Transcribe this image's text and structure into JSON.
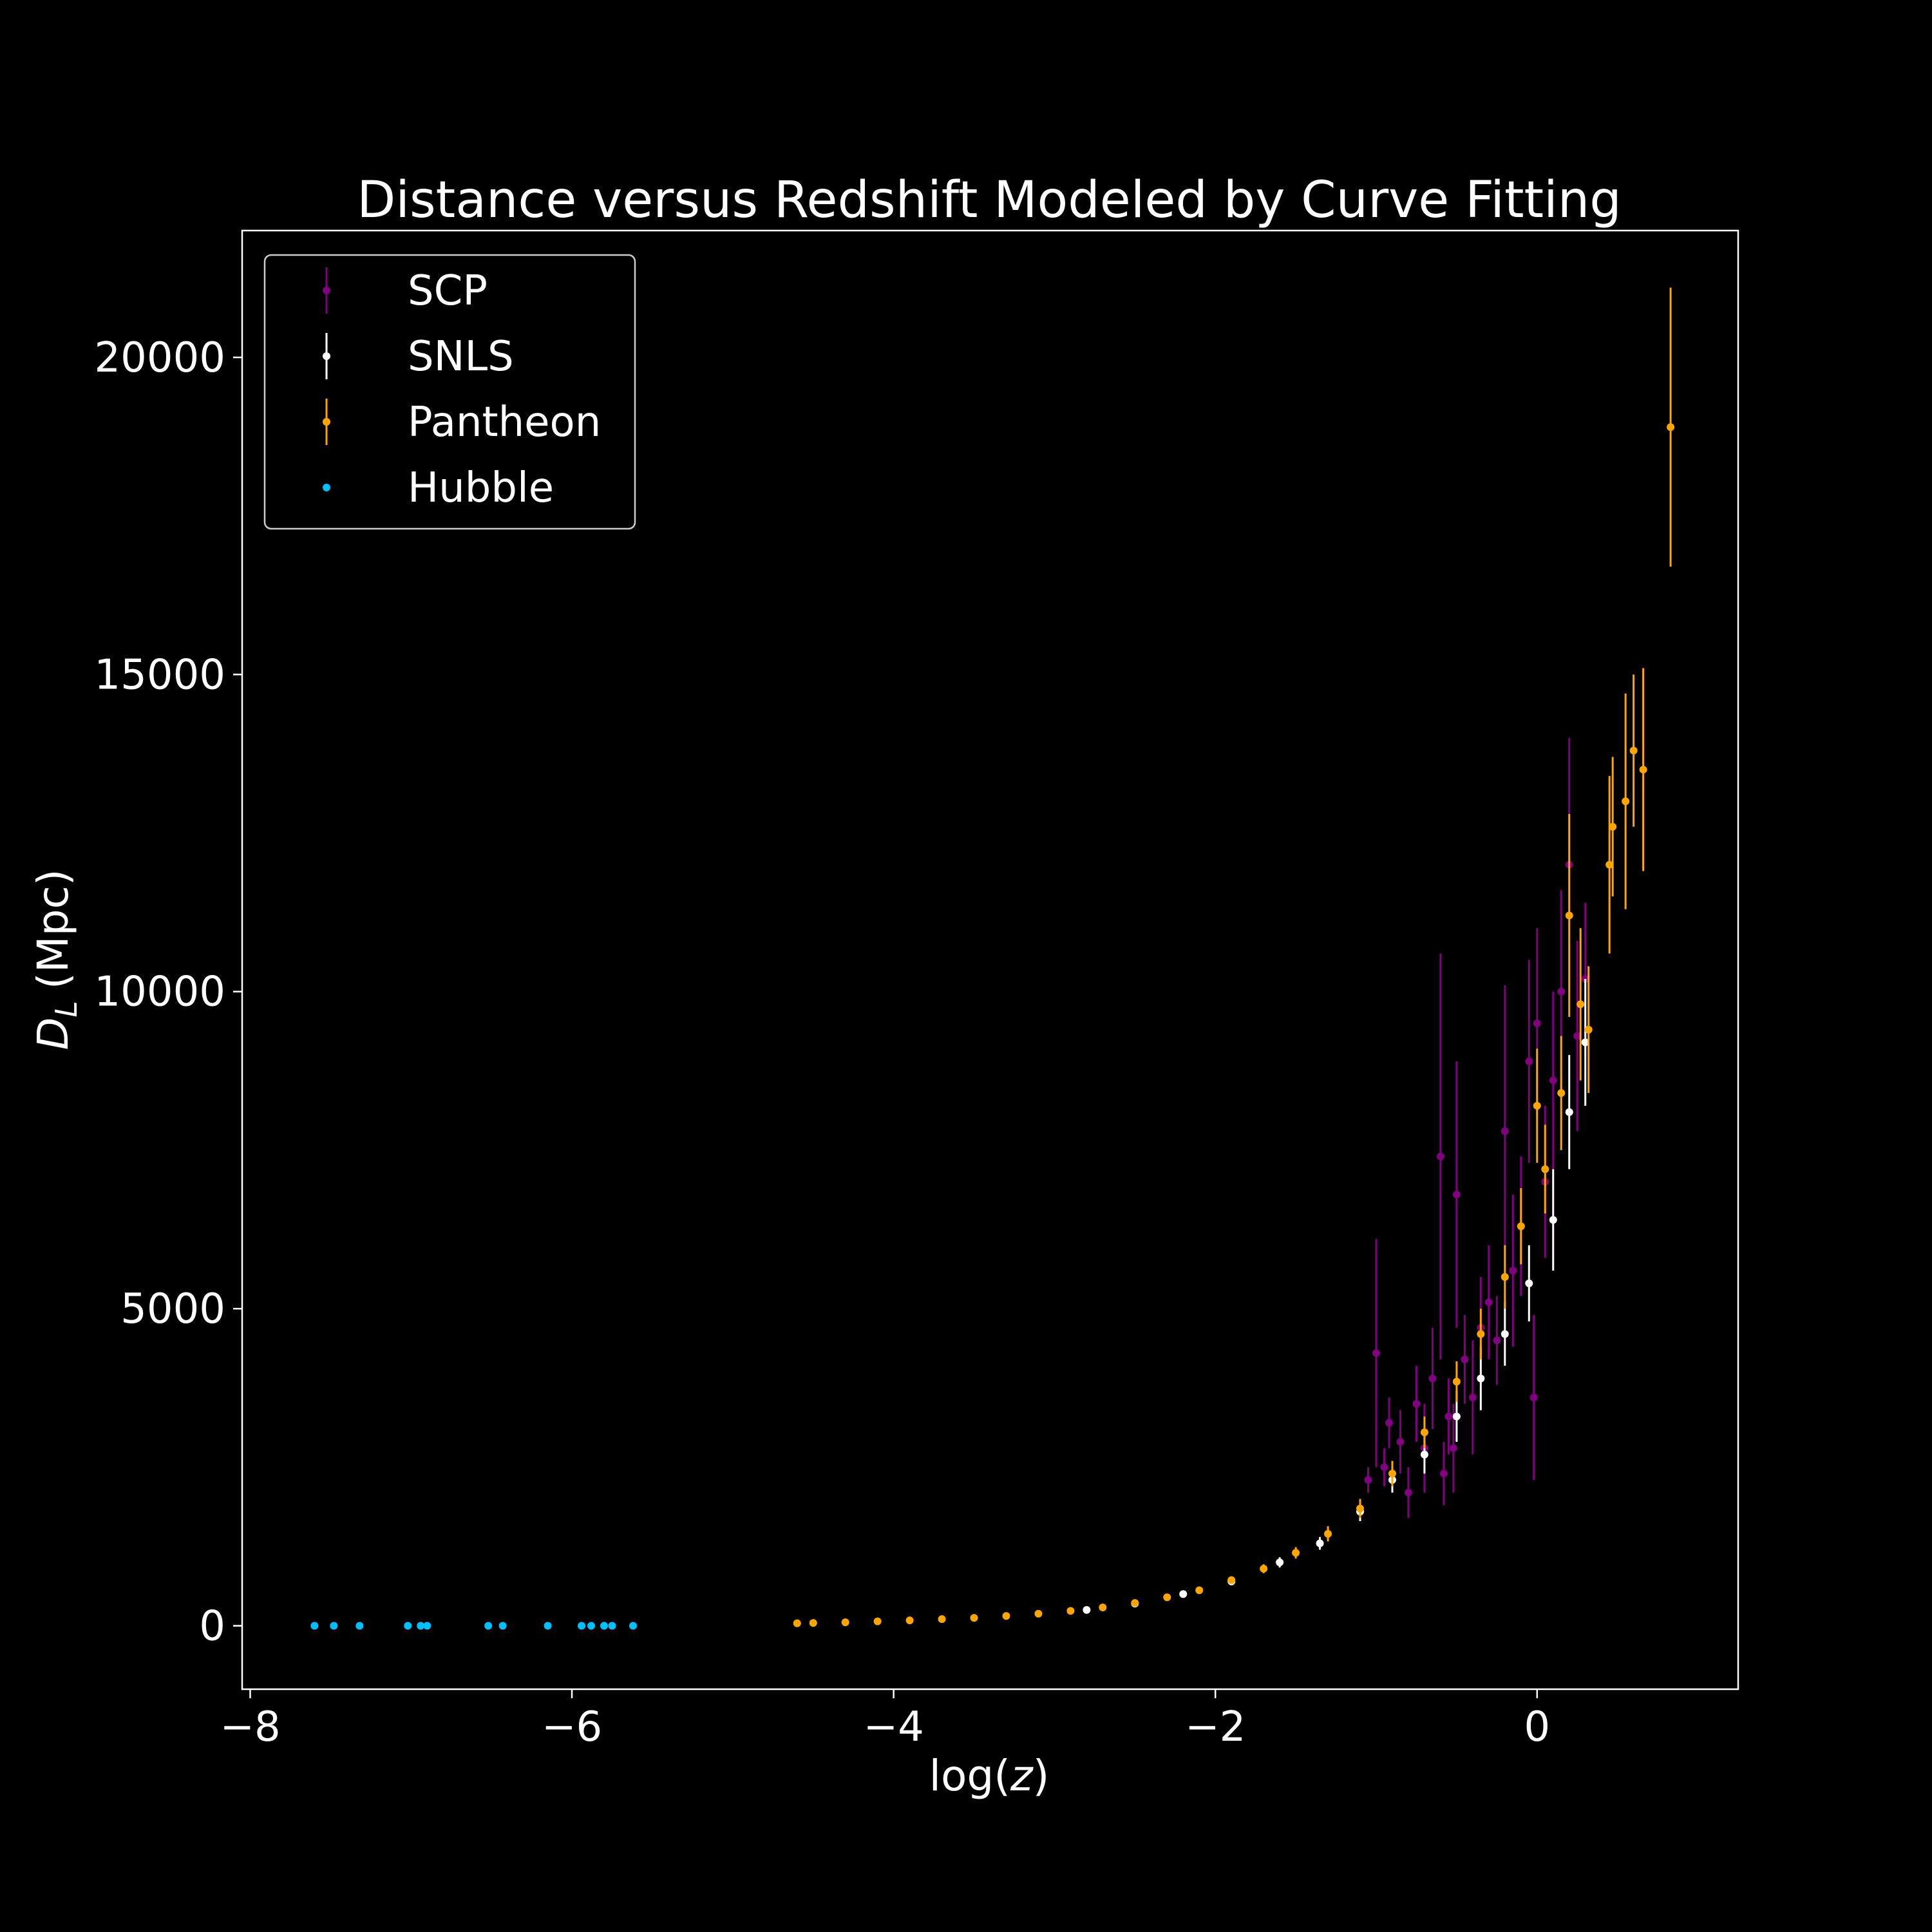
{
  "chart_data": {
    "type": "scatter",
    "title": "Distance versus Redshift Modeled by Curve Fitting",
    "xlabel_prefix": "log(",
    "xlabel_var": "z",
    "xlabel_suffix": ")",
    "ylabel_main": "D",
    "ylabel_sub": "L",
    "ylabel_unit": "(Mpc)",
    "xlim": [
      -8.05,
      1.25
    ],
    "ylim": [
      -1000,
      22000
    ],
    "xticks": [
      -8,
      -6,
      -4,
      -2,
      0
    ],
    "xtick_labels": [
      "−8",
      "−6",
      "−4",
      "−2",
      "0"
    ],
    "yticks": [
      0,
      5000,
      10000,
      15000,
      20000
    ],
    "ytick_labels": [
      "0",
      "5000",
      "10000",
      "15000",
      "20000"
    ],
    "grid": false,
    "legend_position": "top-left",
    "colors": {
      "background": "#000000",
      "axes": "#ffffff",
      "SCP": "#800080",
      "SNLS": "#ffffff",
      "Pantheon": "#ffa500",
      "Hubble": "#00bfff"
    },
    "series": [
      {
        "name": "SCP",
        "color": "#800080",
        "marker": "errorbar",
        "points": [
          {
            "x": -1.05,
            "y": 2300,
            "err": 200
          },
          {
            "x": -1.0,
            "y": 4300,
            "err": 1800
          },
          {
            "x": -0.95,
            "y": 2500,
            "err": 300
          },
          {
            "x": -0.92,
            "y": 3200,
            "err": 400
          },
          {
            "x": -0.85,
            "y": 2900,
            "err": 500
          },
          {
            "x": -0.8,
            "y": 2100,
            "err": 400
          },
          {
            "x": -0.75,
            "y": 3500,
            "err": 600
          },
          {
            "x": -0.7,
            "y": 2800,
            "err": 700
          },
          {
            "x": -0.65,
            "y": 3900,
            "err": 800
          },
          {
            "x": -0.6,
            "y": 7400,
            "err": 3200
          },
          {
            "x": -0.58,
            "y": 2400,
            "err": 500
          },
          {
            "x": -0.55,
            "y": 3300,
            "err": 600
          },
          {
            "x": -0.52,
            "y": 2800,
            "err": 700
          },
          {
            "x": -0.5,
            "y": 6800,
            "err": 2100
          },
          {
            "x": -0.45,
            "y": 4200,
            "err": 700
          },
          {
            "x": -0.4,
            "y": 3600,
            "err": 900
          },
          {
            "x": -0.35,
            "y": 4700,
            "err": 800
          },
          {
            "x": -0.3,
            "y": 5100,
            "err": 900
          },
          {
            "x": -0.25,
            "y": 4500,
            "err": 700
          },
          {
            "x": -0.2,
            "y": 7800,
            "err": 2300
          },
          {
            "x": -0.15,
            "y": 5600,
            "err": 1200
          },
          {
            "x": -0.1,
            "y": 6300,
            "err": 1100
          },
          {
            "x": -0.05,
            "y": 8900,
            "err": 1600
          },
          {
            "x": -0.02,
            "y": 3600,
            "err": 1300
          },
          {
            "x": 0.0,
            "y": 9500,
            "err": 1500
          },
          {
            "x": 0.05,
            "y": 7000,
            "err": 1200
          },
          {
            "x": 0.1,
            "y": 8600,
            "err": 1400
          },
          {
            "x": 0.15,
            "y": 10000,
            "err": 1600
          },
          {
            "x": 0.2,
            "y": 12000,
            "err": 2000
          },
          {
            "x": 0.25,
            "y": 9300,
            "err": 1500
          },
          {
            "x": 0.3,
            "y": 10200,
            "err": 1200
          }
        ]
      },
      {
        "name": "SNLS",
        "color": "#ffffff",
        "marker": "errorbar",
        "points": [
          {
            "x": -2.8,
            "y": 250,
            "err": 30
          },
          {
            "x": -2.5,
            "y": 350,
            "err": 40
          },
          {
            "x": -2.2,
            "y": 500,
            "err": 50
          },
          {
            "x": -1.9,
            "y": 700,
            "err": 60
          },
          {
            "x": -1.6,
            "y": 1000,
            "err": 80
          },
          {
            "x": -1.35,
            "y": 1300,
            "err": 100
          },
          {
            "x": -1.1,
            "y": 1800,
            "err": 150
          },
          {
            "x": -0.9,
            "y": 2300,
            "err": 200
          },
          {
            "x": -0.7,
            "y": 2700,
            "err": 300
          },
          {
            "x": -0.5,
            "y": 3300,
            "err": 400
          },
          {
            "x": -0.35,
            "y": 3900,
            "err": 500
          },
          {
            "x": -0.2,
            "y": 4600,
            "err": 500
          },
          {
            "x": -0.05,
            "y": 5400,
            "err": 600
          },
          {
            "x": 0.1,
            "y": 6400,
            "err": 800
          },
          {
            "x": 0.2,
            "y": 8100,
            "err": 900
          },
          {
            "x": 0.3,
            "y": 9200,
            "err": 1000
          }
        ]
      },
      {
        "name": "Pantheon",
        "color": "#ffa500",
        "marker": "errorbar",
        "points": [
          {
            "x": -4.6,
            "y": 40,
            "err": 10
          },
          {
            "x": -4.5,
            "y": 45,
            "err": 10
          },
          {
            "x": -4.3,
            "y": 55,
            "err": 10
          },
          {
            "x": -4.1,
            "y": 70,
            "err": 10
          },
          {
            "x": -3.9,
            "y": 85,
            "err": 10
          },
          {
            "x": -3.7,
            "y": 105,
            "err": 10
          },
          {
            "x": -3.5,
            "y": 125,
            "err": 15
          },
          {
            "x": -3.3,
            "y": 155,
            "err": 15
          },
          {
            "x": -3.1,
            "y": 190,
            "err": 20
          },
          {
            "x": -2.9,
            "y": 235,
            "err": 25
          },
          {
            "x": -2.7,
            "y": 290,
            "err": 30
          },
          {
            "x": -2.5,
            "y": 360,
            "err": 35
          },
          {
            "x": -2.3,
            "y": 450,
            "err": 40
          },
          {
            "x": -2.1,
            "y": 560,
            "err": 50
          },
          {
            "x": -1.9,
            "y": 720,
            "err": 60
          },
          {
            "x": -1.7,
            "y": 900,
            "err": 70
          },
          {
            "x": -1.5,
            "y": 1150,
            "err": 90
          },
          {
            "x": -1.3,
            "y": 1450,
            "err": 120
          },
          {
            "x": -1.1,
            "y": 1850,
            "err": 150
          },
          {
            "x": -0.9,
            "y": 2400,
            "err": 200
          },
          {
            "x": -0.7,
            "y": 3050,
            "err": 250
          },
          {
            "x": -0.5,
            "y": 3850,
            "err": 320
          },
          {
            "x": -0.35,
            "y": 4600,
            "err": 400
          },
          {
            "x": -0.2,
            "y": 5500,
            "err": 500
          },
          {
            "x": -0.1,
            "y": 6300,
            "err": 600
          },
          {
            "x": 0.0,
            "y": 8200,
            "err": 900
          },
          {
            "x": 0.05,
            "y": 7200,
            "err": 700
          },
          {
            "x": 0.15,
            "y": 8400,
            "err": 900
          },
          {
            "x": 0.2,
            "y": 11200,
            "err": 1600
          },
          {
            "x": 0.27,
            "y": 9800,
            "err": 1200
          },
          {
            "x": 0.32,
            "y": 9400,
            "err": 1000
          },
          {
            "x": 0.45,
            "y": 12000,
            "err": 1400
          },
          {
            "x": 0.47,
            "y": 12600,
            "err": 1100
          },
          {
            "x": 0.55,
            "y": 13000,
            "err": 1700
          },
          {
            "x": 0.6,
            "y": 13800,
            "err": 1200
          },
          {
            "x": 0.66,
            "y": 13500,
            "err": 1600
          },
          {
            "x": 0.83,
            "y": 18900,
            "err": 2200
          }
        ]
      },
      {
        "name": "Hubble",
        "color": "#00bfff",
        "marker": "dot",
        "points": [
          {
            "x": -7.6,
            "y": 0
          },
          {
            "x": -7.48,
            "y": 0
          },
          {
            "x": -7.32,
            "y": 0
          },
          {
            "x": -7.02,
            "y": 0
          },
          {
            "x": -6.94,
            "y": 0
          },
          {
            "x": -6.9,
            "y": 0
          },
          {
            "x": -6.52,
            "y": 0
          },
          {
            "x": -6.43,
            "y": 0
          },
          {
            "x": -6.15,
            "y": 0
          },
          {
            "x": -5.94,
            "y": 0
          },
          {
            "x": -5.88,
            "y": 0
          },
          {
            "x": -5.8,
            "y": 0
          },
          {
            "x": -5.75,
            "y": 0
          },
          {
            "x": -5.62,
            "y": 0
          }
        ]
      }
    ]
  }
}
